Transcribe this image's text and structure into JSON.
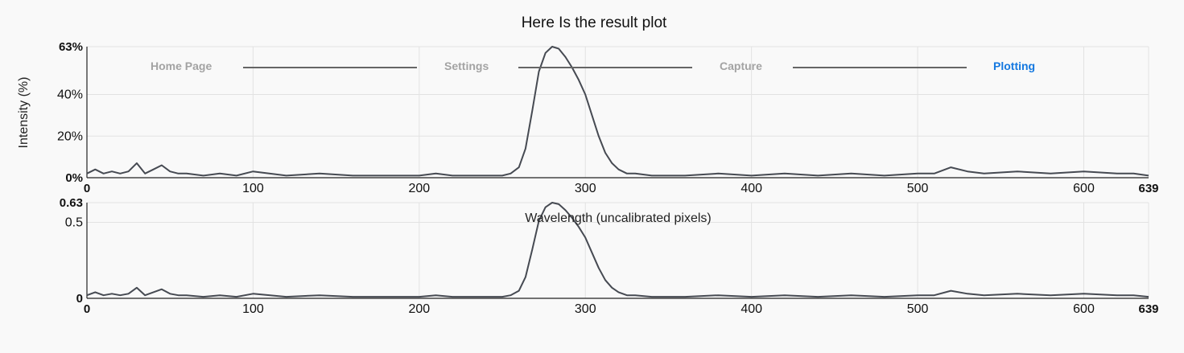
{
  "title": "Here Is the result plot",
  "nav": {
    "steps": [
      {
        "label": "Home Page",
        "active": false
      },
      {
        "label": "Settings",
        "active": false
      },
      {
        "label": "Capture",
        "active": false
      },
      {
        "label": "Plotting",
        "active": true
      }
    ],
    "active_color": "#1478e0",
    "inactive_color": "#a3a3a3"
  },
  "chart_data": [
    {
      "type": "line",
      "title": "Here Is the result plot",
      "ylabel": "Intensity (%)",
      "xlabel": "",
      "xlim": [
        0,
        639
      ],
      "ylim": [
        0,
        63
      ],
      "x_ticks": [
        "0",
        "100",
        "200",
        "300",
        "400",
        "500",
        "600",
        "639"
      ],
      "y_ticks": [
        "0%",
        "20%",
        "40%",
        "63%"
      ],
      "grid": true,
      "line_color": "#464a52",
      "series": [
        {
          "x": [
            0,
            5,
            10,
            15,
            20,
            25,
            30,
            35,
            40,
            45,
            50,
            55,
            60,
            70,
            80,
            90,
            100,
            120,
            140,
            160,
            180,
            200,
            210,
            220,
            230,
            240,
            250,
            255,
            260,
            264,
            268,
            272,
            276,
            280,
            284,
            288,
            292,
            296,
            300,
            304,
            308,
            312,
            316,
            320,
            325,
            330,
            340,
            360,
            380,
            400,
            420,
            440,
            460,
            480,
            500,
            510,
            520,
            530,
            540,
            560,
            580,
            600,
            620,
            630,
            639
          ],
          "y": [
            2,
            4,
            2,
            3,
            2,
            3,
            7,
            2,
            4,
            6,
            3,
            2,
            2,
            1,
            2,
            1,
            3,
            1,
            2,
            1,
            1,
            1,
            2,
            1,
            1,
            1,
            1,
            2,
            5,
            14,
            32,
            51,
            60,
            63,
            62,
            58,
            53,
            47,
            40,
            30,
            20,
            12,
            7,
            4,
            2,
            2,
            1,
            1,
            2,
            1,
            2,
            1,
            2,
            1,
            2,
            2,
            5,
            3,
            2,
            3,
            2,
            3,
            2,
            2,
            1
          ]
        }
      ]
    },
    {
      "type": "line",
      "xlabel": "Wavelength (uncalibrated pixels)",
      "ylabel": "",
      "xlim": [
        0,
        639
      ],
      "ylim": [
        0,
        0.63
      ],
      "x_ticks": [
        "0",
        "100",
        "200",
        "300",
        "400",
        "500",
        "600",
        "639"
      ],
      "y_ticks": [
        "0",
        "0.5",
        "0.63"
      ],
      "grid": true,
      "line_color": "#464a52",
      "series": [
        {
          "x": [
            0,
            5,
            10,
            15,
            20,
            25,
            30,
            35,
            40,
            45,
            50,
            55,
            60,
            70,
            80,
            90,
            100,
            120,
            140,
            160,
            180,
            200,
            210,
            220,
            230,
            240,
            250,
            255,
            260,
            264,
            268,
            272,
            276,
            280,
            284,
            288,
            292,
            296,
            300,
            304,
            308,
            312,
            316,
            320,
            325,
            330,
            340,
            360,
            380,
            400,
            420,
            440,
            460,
            480,
            500,
            510,
            520,
            530,
            540,
            560,
            580,
            600,
            620,
            630,
            639
          ],
          "y": [
            0.02,
            0.04,
            0.02,
            0.03,
            0.02,
            0.03,
            0.07,
            0.02,
            0.04,
            0.06,
            0.03,
            0.02,
            0.02,
            0.01,
            0.02,
            0.01,
            0.03,
            0.01,
            0.02,
            0.01,
            0.01,
            0.01,
            0.02,
            0.01,
            0.01,
            0.01,
            0.01,
            0.02,
            0.05,
            0.14,
            0.32,
            0.51,
            0.6,
            0.63,
            0.62,
            0.58,
            0.53,
            0.47,
            0.4,
            0.3,
            0.2,
            0.12,
            0.07,
            0.04,
            0.02,
            0.02,
            0.01,
            0.01,
            0.02,
            0.01,
            0.02,
            0.01,
            0.02,
            0.01,
            0.02,
            0.02,
            0.05,
            0.03,
            0.02,
            0.03,
            0.02,
            0.03,
            0.02,
            0.02,
            0.01
          ]
        }
      ]
    }
  ]
}
